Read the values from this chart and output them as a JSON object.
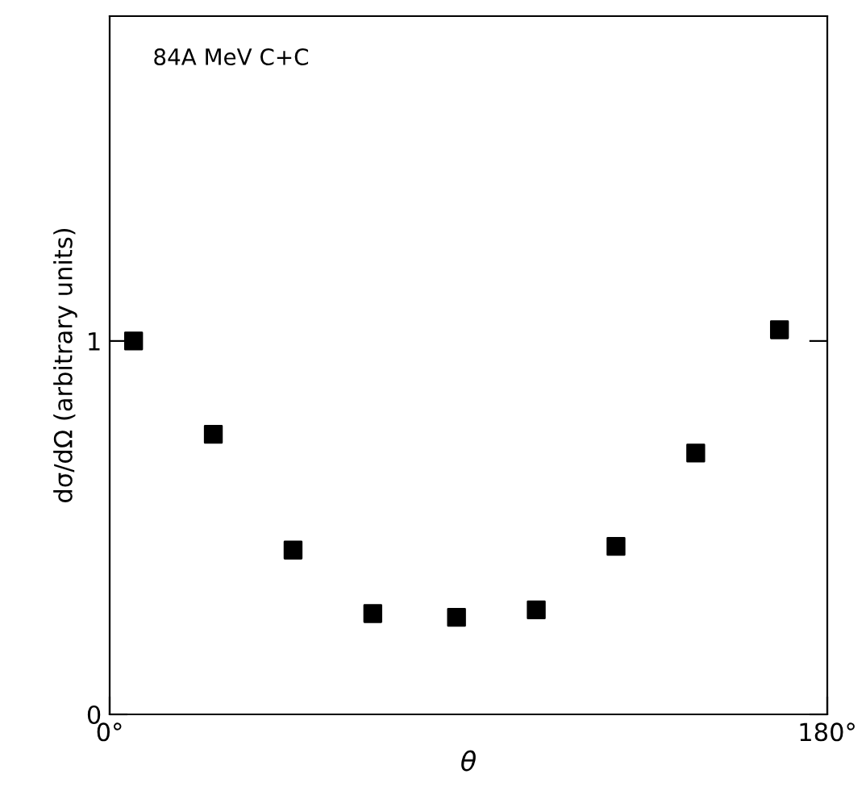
{
  "chart_data": {
    "type": "scatter",
    "xlabel": "θ",
    "ylabel": "dσ/dΩ (arbitrary units)",
    "annotations": [
      "84A MeV C+C"
    ],
    "x": [
      6,
      26,
      46,
      66,
      87,
      107,
      127,
      147,
      168
    ],
    "series": [
      {
        "color": "#000000",
        "values": [
          1.0,
          0.75,
          0.44,
          0.27,
          0.26,
          0.28,
          0.45,
          0.7,
          1.03
        ]
      }
    ],
    "xlim": [
      0,
      180
    ],
    "ylim": [
      0,
      1.87
    ],
    "xticks": [
      {
        "value": 0,
        "label": "0°"
      },
      {
        "value": 180,
        "label": "180°"
      }
    ],
    "yticks": [
      0,
      1
    ],
    "marker": "square",
    "grid": false,
    "legend": false
  }
}
